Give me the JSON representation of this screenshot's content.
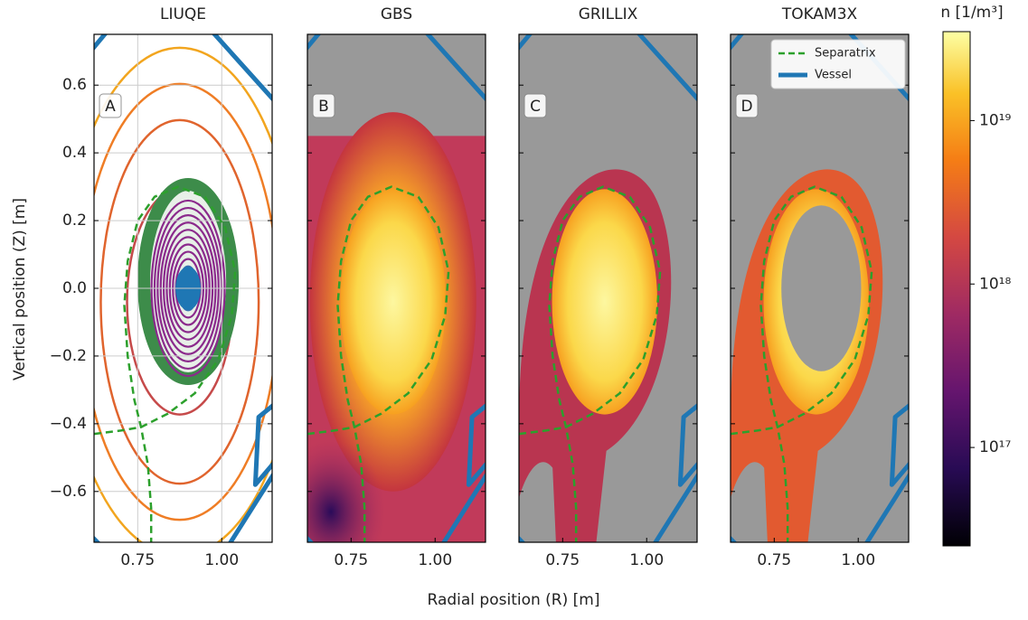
{
  "chart_data": {
    "type": "line",
    "xlabel": "Radial position (R) [m]",
    "ylabel": "Vertical position (Z) [m]",
    "panels": [
      {
        "title": "LIUQE",
        "label": "A",
        "grid": true
      },
      {
        "title": "GBS",
        "label": "B",
        "grid": false
      },
      {
        "title": "GRILLIX",
        "label": "C",
        "grid": false
      },
      {
        "title": "TOKAM3X",
        "label": "D",
        "grid": false
      }
    ],
    "xlim": [
      0.62,
      1.15
    ],
    "ylim": [
      -0.75,
      0.75
    ],
    "xticks": [
      0.75,
      {
        "value": 1,
        "label": "1.00"
      }
    ],
    "yticks": [
      {
        "value": 0.6,
        "label": "0.6"
      },
      {
        "value": 0.4,
        "label": "0.4"
      },
      {
        "value": 0.2,
        "label": "0.2"
      },
      {
        "value": 0,
        "label": "0.0"
      },
      {
        "value": -0.2,
        "label": "−0.2"
      },
      {
        "value": -0.4,
        "label": "−0.4"
      },
      {
        "value": -0.6,
        "label": "−0.6"
      }
    ],
    "legend": "upper right",
    "series": [
      {
        "name": "Separatrix",
        "color": "#2ca02c",
        "dashed": true,
        "x": [
          0.62,
          0.7,
          0.76,
          0.84,
          0.92,
          0.99,
          1.03,
          1.04,
          1.01,
          0.95,
          0.87,
          0.8,
          0.75,
          0.72,
          0.71,
          0.72,
          0.74,
          0.76,
          0.78,
          0.79,
          0.79
        ],
        "y": [
          -0.43,
          -0.42,
          -0.41,
          -0.37,
          -0.31,
          -0.21,
          -0.08,
          0.05,
          0.18,
          0.27,
          0.3,
          0.27,
          0.2,
          0.08,
          -0.05,
          -0.2,
          -0.33,
          -0.41,
          -0.52,
          -0.65,
          -0.75
        ]
      },
      {
        "name": "Vessel",
        "color": "#1f77b4",
        "dashed": false,
        "x": [
          0.61,
          0.66,
          null,
          0.97,
          1.16,
          null,
          1.16,
          1.11,
          1.1,
          1.16,
          null,
          1.16,
          1.02,
          null,
          0.61,
          0.64
        ],
        "y": [
          0.7,
          0.76,
          null,
          0.76,
          0.55,
          null,
          -0.34,
          -0.38,
          -0.58,
          -0.51,
          null,
          -0.54,
          -0.76,
          null,
          -0.73,
          -0.76
        ]
      }
    ],
    "colorbar": {
      "label": "n [1/m³]",
      "log": true,
      "lim": [
        2.5e+16,
        3.5e+19
      ],
      "ticks": [
        {
          "value": 1e+17,
          "label": "10¹⁷"
        },
        {
          "value": 1e+18,
          "label": "10¹⁸"
        },
        {
          "value": 1e+19,
          "label": "10¹⁹"
        }
      ]
    }
  }
}
